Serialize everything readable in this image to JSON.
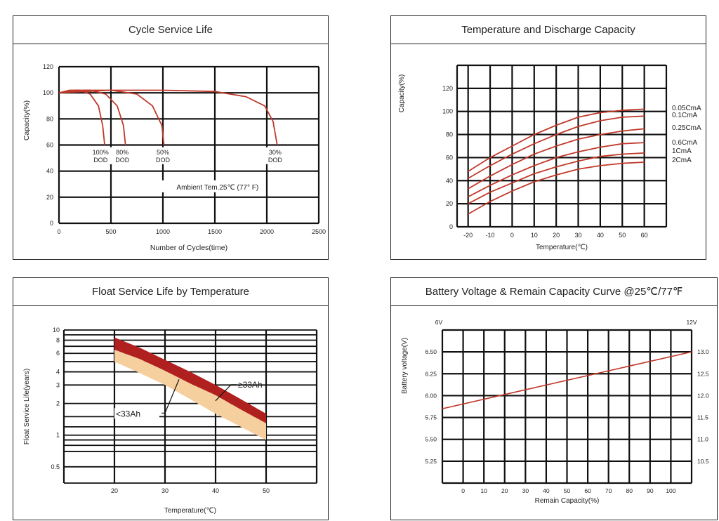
{
  "chart_data": [
    {
      "type": "line",
      "title": "Cycle Service Life",
      "xlabel": "Number of Cycles(time)",
      "ylabel": "Capacity(%)",
      "xlim": [
        0,
        2500
      ],
      "ylim": [
        0,
        120
      ],
      "xticks": [
        "0",
        "500",
        "1000",
        "1500",
        "2000",
        "2500"
      ],
      "yticks": [
        "0",
        "20",
        "40",
        "60",
        "80",
        "100",
        "120"
      ],
      "annotation": "Ambient Tem.25℃ (77° F)",
      "series": [
        {
          "name": "100% DOD",
          "x": [
            0,
            100,
            200,
            300,
            380,
            420,
            440
          ],
          "y": [
            100,
            102,
            102,
            99,
            90,
            75,
            60
          ]
        },
        {
          "name": "80% DOD",
          "x": [
            0,
            150,
            300,
            450,
            560,
            620,
            640
          ],
          "y": [
            100,
            102,
            102,
            99,
            90,
            75,
            60
          ]
        },
        {
          "name": "50% DOD",
          "x": [
            0,
            250,
            500,
            750,
            900,
            990,
            1010
          ],
          "y": [
            100,
            102,
            102,
            99,
            90,
            75,
            60
          ]
        },
        {
          "name": "30% DOD",
          "x": [
            0,
            500,
            1000,
            1500,
            1800,
            1980,
            2060,
            2100
          ],
          "y": [
            100,
            102,
            102,
            101,
            97,
            90,
            78,
            60
          ]
        }
      ],
      "labels": [
        {
          "text": [
            "100%",
            "DOD"
          ],
          "x": 400,
          "y": 55
        },
        {
          "text": [
            "80%",
            "DOD"
          ],
          "x": 610,
          "y": 55
        },
        {
          "text": [
            "50%",
            "DOD"
          ],
          "x": 1000,
          "y": 55
        },
        {
          "text": [
            "30%",
            "DOD"
          ],
          "x": 2080,
          "y": 55
        }
      ],
      "grid": true,
      "line_color": "#c0392b"
    },
    {
      "type": "line",
      "title": "Temperature and Discharge Capacity",
      "xlabel": "Temperature(℃)",
      "ylabel": "Capacity(%)",
      "xlim": [
        -25,
        70
      ],
      "ylim": [
        0,
        140
      ],
      "xticks": [
        -20,
        -10,
        0,
        10,
        20,
        30,
        40,
        50,
        60
      ],
      "yticks": [
        0,
        20,
        40,
        60,
        80,
        100,
        120
      ],
      "series": [
        {
          "name": "0.05CmA",
          "x": [
            -20,
            -10,
            0,
            10,
            20,
            30,
            40,
            50,
            60
          ],
          "y": [
            48,
            60,
            70,
            80,
            88,
            95,
            99,
            101,
            102
          ]
        },
        {
          "name": "0.1CmA",
          "x": [
            -20,
            -10,
            0,
            10,
            20,
            30,
            40,
            50,
            60
          ],
          "y": [
            42,
            53,
            63,
            72,
            80,
            87,
            92,
            95,
            96
          ]
        },
        {
          "name": "0.25CmA",
          "x": [
            -20,
            -10,
            0,
            10,
            20,
            30,
            40,
            50,
            60
          ],
          "y": [
            33,
            44,
            54,
            63,
            70,
            76,
            80,
            83,
            85
          ]
        },
        {
          "name": "0.6CmA",
          "x": [
            -20,
            -10,
            0,
            10,
            20,
            30,
            40,
            50,
            60
          ],
          "y": [
            26,
            36,
            45,
            53,
            60,
            65,
            69,
            72,
            73
          ]
        },
        {
          "name": "1CmA",
          "x": [
            -20,
            -10,
            0,
            10,
            20,
            30,
            40,
            50,
            60
          ],
          "y": [
            20,
            30,
            38,
            46,
            52,
            57,
            61,
            63,
            64
          ]
        },
        {
          "name": "2CmA",
          "x": [
            -20,
            -10,
            0,
            10,
            20,
            30,
            40,
            50,
            60
          ],
          "y": [
            11,
            22,
            31,
            39,
            45,
            50,
            53,
            55,
            56
          ]
        }
      ],
      "grid": true,
      "line_color": "#c0392b"
    },
    {
      "type": "area",
      "title": "Float Service Life by Temperature",
      "xlabel": "Temperature(℃)",
      "ylabel": "Float Service Life(years)",
      "xlim": [
        10,
        60
      ],
      "ylim": [
        0.35,
        10
      ],
      "ylog": true,
      "xticks": [
        20,
        30,
        40,
        50
      ],
      "yticks": [
        "0.5",
        "1",
        "2",
        "3",
        "4",
        "6",
        "8",
        "10"
      ],
      "series": [
        {
          "name": "≥33Ah",
          "x": [
            20,
            25,
            30,
            35,
            40,
            45,
            50
          ],
          "upper": [
            8.5,
            6.8,
            5.2,
            4.0,
            3.0,
            2.2,
            1.6
          ],
          "lower": [
            6.5,
            5.3,
            4.1,
            3.1,
            2.4,
            1.75,
            1.3
          ],
          "color": "#b0201f"
        },
        {
          "name": "<33Ah",
          "x": [
            20,
            25,
            30,
            35,
            40,
            45,
            50
          ],
          "upper": [
            6.5,
            5.3,
            4.1,
            3.1,
            2.4,
            1.75,
            1.3
          ],
          "lower": [
            5.0,
            3.9,
            3.0,
            2.2,
            1.6,
            1.2,
            0.9
          ],
          "color": "#f6cf9f"
        }
      ],
      "callouts": [
        "≥33Ah",
        "<33Ah"
      ],
      "grid": true
    },
    {
      "type": "line",
      "title": "Battery Voltage & Remain Capacity Curve @25℃/77℉",
      "xlabel": "Remain Capacity(%)",
      "ylabel": "Battery voltage(V)",
      "ylabel_right": "",
      "xlim": [
        -10,
        110
      ],
      "ylim": [
        5.0,
        6.75
      ],
      "y2lim": [
        10.0,
        13.5
      ],
      "xticks": [
        0,
        10,
        20,
        30,
        40,
        50,
        60,
        70,
        80,
        90,
        100
      ],
      "yticks": [
        "5.25",
        "5.50",
        "5.75",
        "6.00",
        "6.25",
        "6.50"
      ],
      "y2ticks": [
        "10.5",
        "11.0",
        "11.5",
        "12.0",
        "12.5",
        "13.0"
      ],
      "left_top_label": "6V",
      "right_top_label": "12V",
      "series": [
        {
          "name": "",
          "x": [
            -10,
            110
          ],
          "y": [
            5.85,
            6.5
          ]
        }
      ],
      "grid": true,
      "line_color": "#c0392b"
    }
  ]
}
